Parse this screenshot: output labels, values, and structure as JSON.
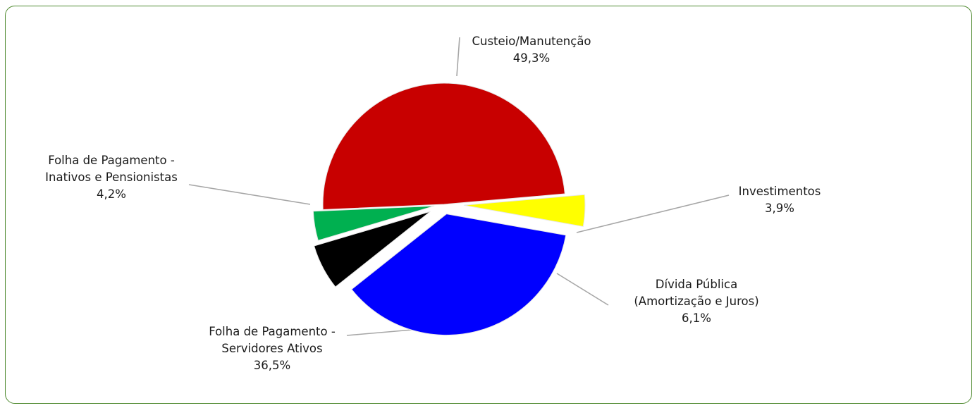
{
  "chart_data": {
    "type": "pie",
    "legend": "none",
    "slices": [
      {
        "name": "Custeio/Manutenção",
        "lines": [
          "Custeio/Manutenção"
        ],
        "value": 49.3,
        "value_label": "49,3%",
        "color": "#c80000"
      },
      {
        "name": "Investimentos",
        "lines": [
          "Investimentos"
        ],
        "value": 3.9,
        "value_label": "3,9%",
        "color": "#00b050"
      },
      {
        "name": "Dívida Pública (Amortização e Juros)",
        "lines": [
          "Dívida Pública",
          "(Amortização e Juros)"
        ],
        "value": 6.1,
        "value_label": "6,1%",
        "color": "#000000"
      },
      {
        "name": "Folha de Pagamento - Servidores Ativos",
        "lines": [
          "Folha de Pagamento -",
          "Servidores Ativos"
        ],
        "value": 36.5,
        "value_label": "36,5%",
        "color": "#0000ff"
      },
      {
        "name": "Folha de Pagamento - Inativos e Pensionistas",
        "lines": [
          "Folha de Pagamento -",
          "Inativos e Pensionistas"
        ],
        "value": 4.2,
        "value_label": "4,2%",
        "color": "#ffff00"
      }
    ]
  }
}
